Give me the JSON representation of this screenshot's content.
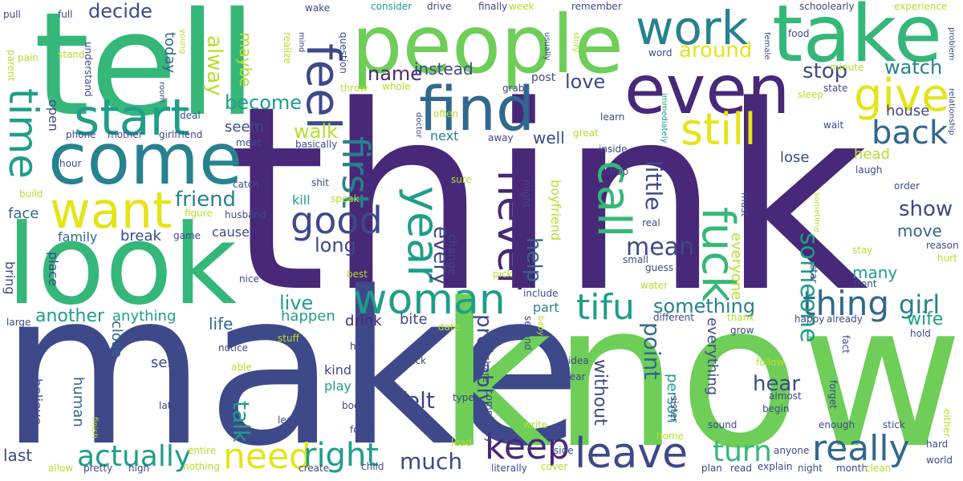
{
  "palette": {
    "purple": "#482878",
    "indigo": "#3e4989",
    "blue": "#31688e",
    "teal": "#26828e",
    "cyan": "#1f9e89",
    "green": "#35b779",
    "lime": "#6ece58",
    "yellowgreen": "#b5de2b",
    "yellow": "#e4e419"
  },
  "words": [
    {
      "text": "think",
      "color": "purple"
    },
    {
      "text": "make",
      "color": "indigo"
    },
    {
      "text": "know",
      "color": "lime"
    },
    {
      "text": "tell",
      "color": "green"
    },
    {
      "text": "look",
      "color": "green"
    },
    {
      "text": "people",
      "color": "lime"
    },
    {
      "text": "take",
      "color": "green"
    },
    {
      "text": "come",
      "color": "teal"
    },
    {
      "text": "even",
      "color": "purple"
    },
    {
      "text": "work",
      "color": "teal"
    },
    {
      "text": "find",
      "color": "blue"
    },
    {
      "text": "start",
      "color": "cyan"
    },
    {
      "text": "want",
      "color": "yellow"
    },
    {
      "text": "time",
      "color": "cyan"
    },
    {
      "text": "feel",
      "color": "indigo"
    },
    {
      "text": "still",
      "color": "yellow"
    },
    {
      "text": "give",
      "color": "yellow"
    },
    {
      "text": "call",
      "color": "green"
    },
    {
      "text": "fuck",
      "color": "green"
    },
    {
      "text": "never",
      "color": "purple"
    },
    {
      "text": "year",
      "color": "cyan"
    },
    {
      "text": "first",
      "color": "teal"
    },
    {
      "text": "good",
      "color": "indigo"
    },
    {
      "text": "woman",
      "color": "cyan"
    },
    {
      "text": "tifu",
      "color": "cyan"
    },
    {
      "text": "back",
      "color": "blue"
    },
    {
      "text": "leave",
      "color": "indigo"
    },
    {
      "text": "keep",
      "color": "purple"
    },
    {
      "text": "need",
      "color": "yellow"
    },
    {
      "text": "right",
      "color": "cyan"
    },
    {
      "text": "really",
      "color": "blue"
    },
    {
      "text": "thing",
      "color": "blue"
    },
    {
      "text": "girl",
      "color": "teal"
    },
    {
      "text": "actually",
      "color": "cyan"
    },
    {
      "text": "much",
      "color": "indigo"
    },
    {
      "text": "turn",
      "color": "green"
    },
    {
      "text": "friend",
      "color": "teal"
    },
    {
      "text": "someone",
      "color": "cyan"
    },
    {
      "text": "mean",
      "color": "indigo"
    },
    {
      "text": "decide",
      "color": "indigo"
    },
    {
      "text": "become",
      "color": "cyan"
    },
    {
      "text": "around",
      "color": "yellow"
    },
    {
      "text": "name",
      "color": "purple"
    },
    {
      "text": "instead",
      "color": "indigo"
    },
    {
      "text": "stop",
      "color": "indigo"
    },
    {
      "text": "watch",
      "color": "teal"
    },
    {
      "text": "love",
      "color": "indigo"
    },
    {
      "text": "walk",
      "color": "yellowgreen"
    },
    {
      "text": "show",
      "color": "indigo"
    },
    {
      "text": "long",
      "color": "indigo"
    },
    {
      "text": "something",
      "color": "teal"
    },
    {
      "text": "live",
      "color": "cyan"
    },
    {
      "text": "another",
      "color": "cyan"
    },
    {
      "text": "anything",
      "color": "cyan"
    },
    {
      "text": "life",
      "color": "blue"
    },
    {
      "text": "happen",
      "color": "cyan"
    },
    {
      "text": "drink",
      "color": "purple"
    },
    {
      "text": "bite",
      "color": "indigo"
    },
    {
      "text": "part",
      "color": "teal"
    },
    {
      "text": "probably",
      "color": "indigo"
    },
    {
      "text": "point",
      "color": "blue"
    },
    {
      "text": "hear",
      "color": "indigo"
    },
    {
      "text": "talk",
      "color": "cyan"
    },
    {
      "text": "felt",
      "color": "indigo"
    },
    {
      "text": "without",
      "color": "indigo"
    },
    {
      "text": "wife",
      "color": "cyan"
    },
    {
      "text": "many",
      "color": "cyan"
    },
    {
      "text": "move",
      "color": "blue"
    },
    {
      "text": "seem",
      "color": "indigo"
    },
    {
      "text": "cause",
      "color": "indigo"
    },
    {
      "text": "kill",
      "color": "cyan"
    },
    {
      "text": "family",
      "color": "blue"
    },
    {
      "text": "break",
      "color": "indigo"
    },
    {
      "text": "face",
      "color": "blue"
    },
    {
      "text": "today",
      "color": "blue"
    },
    {
      "text": "alway",
      "color": "yellowgreen"
    },
    {
      "text": "maybe",
      "color": "yellowgreen"
    },
    {
      "text": "every",
      "color": "indigo"
    },
    {
      "text": "help",
      "color": "blue"
    },
    {
      "text": "little",
      "color": "indigo"
    },
    {
      "text": "well",
      "color": "indigo"
    },
    {
      "text": "next",
      "color": "teal"
    },
    {
      "text": "house",
      "color": "indigo"
    },
    {
      "text": "head",
      "color": "yellowgreen"
    },
    {
      "text": "lose",
      "color": "indigo"
    },
    {
      "text": "close",
      "color": "blue"
    },
    {
      "text": "send",
      "color": "indigo"
    },
    {
      "text": "human",
      "color": "blue"
    },
    {
      "text": "kind",
      "color": "indigo"
    },
    {
      "text": "play",
      "color": "cyan"
    },
    {
      "text": "person",
      "color": "cyan"
    },
    {
      "text": "everything",
      "color": "indigo"
    },
    {
      "text": "everyone",
      "color": "yellowgreen"
    },
    {
      "text": "believe",
      "color": "indigo"
    },
    {
      "text": "place",
      "color": "indigo"
    },
    {
      "text": "bring",
      "color": "indigo"
    },
    {
      "text": "last",
      "color": "indigo"
    },
    {
      "text": "open",
      "color": "indigo"
    },
    {
      "text": "boyfriend",
      "color": "yellowgreen"
    },
    {
      "text": "change",
      "color": "indigo"
    },
    {
      "text": "pull",
      "color": "indigo"
    },
    {
      "text": "full",
      "color": "indigo"
    },
    {
      "text": "young",
      "color": "yellowgreen"
    },
    {
      "text": "wake",
      "color": "indigo"
    },
    {
      "text": "consider",
      "color": "cyan"
    },
    {
      "text": "drive",
      "color": "indigo"
    },
    {
      "text": "finally",
      "color": "indigo"
    },
    {
      "text": "week",
      "color": "yellowgreen"
    },
    {
      "text": "remember",
      "color": "indigo"
    },
    {
      "text": "schoolearly",
      "color": "indigo"
    },
    {
      "text": "experience",
      "color": "yellowgreen"
    },
    {
      "text": "food",
      "color": "indigo"
    },
    {
      "text": "female",
      "color": "indigo"
    },
    {
      "text": "word",
      "color": "indigo"
    },
    {
      "text": "minute",
      "color": "yellowgreen"
    },
    {
      "text": "parent",
      "color": "yellowgreen"
    },
    {
      "text": "pain",
      "color": "yellowgreen"
    },
    {
      "text": "stand",
      "color": "yellowgreen"
    },
    {
      "text": "understand",
      "color": "indigo"
    },
    {
      "text": "room",
      "color": "indigo"
    },
    {
      "text": "phone",
      "color": "indigo"
    },
    {
      "text": "mother",
      "color": "indigo"
    },
    {
      "text": "girlfriend",
      "color": "indigo"
    },
    {
      "text": "deal",
      "color": "indigo"
    },
    {
      "text": "realize",
      "color": "yellowgreen"
    },
    {
      "text": "mind",
      "color": "indigo"
    },
    {
      "text": "question",
      "color": "indigo"
    },
    {
      "text": "throw",
      "color": "yellowgreen"
    },
    {
      "text": "whole",
      "color": "yellowgreen"
    },
    {
      "text": "often",
      "color": "yellowgreen"
    },
    {
      "text": "grab",
      "color": "indigo"
    },
    {
      "text": "post",
      "color": "indigo"
    },
    {
      "text": "usually",
      "color": "indigo"
    },
    {
      "text": "story",
      "color": "yellowgreen"
    },
    {
      "text": "state",
      "color": "indigo"
    },
    {
      "text": "sleep",
      "color": "yellowgreen"
    },
    {
      "text": "learn",
      "color": "indigo"
    },
    {
      "text": "immediately",
      "color": "cyan"
    },
    {
      "text": "wait",
      "color": "indigo"
    },
    {
      "text": "relationship",
      "color": "indigo"
    },
    {
      "text": "problem",
      "color": "indigo"
    },
    {
      "text": "meet",
      "color": "indigo"
    },
    {
      "text": "basically",
      "color": "indigo"
    },
    {
      "text": "doctor",
      "color": "indigo"
    },
    {
      "text": "away",
      "color": "indigo"
    },
    {
      "text": "great",
      "color": "yellowgreen"
    },
    {
      "text": "inside",
      "color": "indigo"
    },
    {
      "text": "laugh",
      "color": "indigo"
    },
    {
      "text": "hour",
      "color": "indigo"
    },
    {
      "text": "build",
      "color": "yellowgreen"
    },
    {
      "text": "shit",
      "color": "indigo"
    },
    {
      "text": "catch",
      "color": "indigo"
    },
    {
      "text": "speak",
      "color": "yellowgreen"
    },
    {
      "text": "husband",
      "color": "indigo"
    },
    {
      "text": "figure",
      "color": "yellowgreen"
    },
    {
      "text": "game",
      "color": "indigo"
    },
    {
      "text": "sure",
      "color": "yellowgreen"
    },
    {
      "text": "might",
      "color": "indigo"
    },
    {
      "text": "drop",
      "color": "indigo"
    },
    {
      "text": "must",
      "color": "indigo"
    },
    {
      "text": "sometime",
      "color": "yellowgreen"
    },
    {
      "text": "order",
      "color": "indigo"
    },
    {
      "text": "real",
      "color": "indigo"
    },
    {
      "text": "small",
      "color": "indigo"
    },
    {
      "text": "guess",
      "color": "indigo"
    },
    {
      "text": "reason",
      "color": "indigo"
    },
    {
      "text": "star",
      "color": "indigo"
    },
    {
      "text": "stay",
      "color": "yellowgreen"
    },
    {
      "text": "hurt",
      "color": "yellowgreen"
    },
    {
      "text": "nice",
      "color": "indigo"
    },
    {
      "text": "best",
      "color": "yellowgreen"
    },
    {
      "text": "include",
      "color": "indigo"
    },
    {
      "text": "water",
      "color": "yellowgreen"
    },
    {
      "text": "front",
      "color": "indigo"
    },
    {
      "text": "large",
      "color": "indigo"
    },
    {
      "text": "different",
      "color": "indigo"
    },
    {
      "text": "thank",
      "color": "yellowgreen"
    },
    {
      "text": "happy",
      "color": "indigo"
    },
    {
      "text": "already",
      "color": "indigo"
    },
    {
      "text": "hold",
      "color": "indigo"
    },
    {
      "text": "date",
      "color": "yellowgreen"
    },
    {
      "text": "stuff",
      "color": "yellowgreen"
    },
    {
      "text": "notice",
      "color": "indigo"
    },
    {
      "text": "second",
      "color": "indigo"
    },
    {
      "text": "baby",
      "color": "yellowgreen"
    },
    {
      "text": "grow",
      "color": "indigo"
    },
    {
      "text": "fact",
      "color": "indigo"
    },
    {
      "text": "hand",
      "color": "indigo"
    },
    {
      "text": "check",
      "color": "indigo"
    },
    {
      "text": "share",
      "color": "indigo"
    },
    {
      "text": "idea",
      "color": "indigo"
    },
    {
      "text": "follow",
      "color": "yellowgreen"
    },
    {
      "text": "able",
      "color": "yellowgreen"
    },
    {
      "text": "type",
      "color": "indigo"
    },
    {
      "text": "completely",
      "color": "indigo"
    },
    {
      "text": "wear",
      "color": "indigo"
    },
    {
      "text": "sister",
      "color": "indigo"
    },
    {
      "text": "almost",
      "color": "indigo"
    },
    {
      "text": "forget",
      "color": "indigo"
    },
    {
      "text": "late",
      "color": "indigo"
    },
    {
      "text": "body",
      "color": "indigo"
    },
    {
      "text": "begin",
      "color": "indigo"
    },
    {
      "text": "finish",
      "color": "yellowgreen"
    },
    {
      "text": "least",
      "color": "indigo"
    },
    {
      "text": "force",
      "color": "indigo"
    },
    {
      "text": "write",
      "color": "yellowgreen"
    },
    {
      "text": "sound",
      "color": "indigo"
    },
    {
      "text": "enough",
      "color": "indigo"
    },
    {
      "text": "stick",
      "color": "indigo"
    },
    {
      "text": "either",
      "color": "yellowgreen"
    },
    {
      "text": "entire",
      "color": "yellowgreen"
    },
    {
      "text": "lead",
      "color": "yellowgreen"
    },
    {
      "text": "side",
      "color": "indigo"
    },
    {
      "text": "home",
      "color": "yellowgreen"
    },
    {
      "text": "anyone",
      "color": "indigo"
    },
    {
      "text": "hard",
      "color": "indigo"
    },
    {
      "text": "allow",
      "color": "yellowgreen"
    },
    {
      "text": "pretty",
      "color": "indigo"
    },
    {
      "text": "high",
      "color": "indigo"
    },
    {
      "text": "nothing",
      "color": "yellowgreen"
    },
    {
      "text": "create",
      "color": "indigo"
    },
    {
      "text": "child",
      "color": "indigo"
    },
    {
      "text": "literally",
      "color": "indigo"
    },
    {
      "text": "pick",
      "color": "yellowgreen"
    },
    {
      "text": "cover",
      "color": "yellowgreen"
    },
    {
      "text": "plan",
      "color": "indigo"
    },
    {
      "text": "read",
      "color": "indigo"
    },
    {
      "text": "explain",
      "color": "indigo"
    },
    {
      "text": "night",
      "color": "indigo"
    },
    {
      "text": "month",
      "color": "indigo"
    },
    {
      "text": "clean",
      "color": "yellowgreen"
    },
    {
      "text": "world",
      "color": "indigo"
    }
  ]
}
